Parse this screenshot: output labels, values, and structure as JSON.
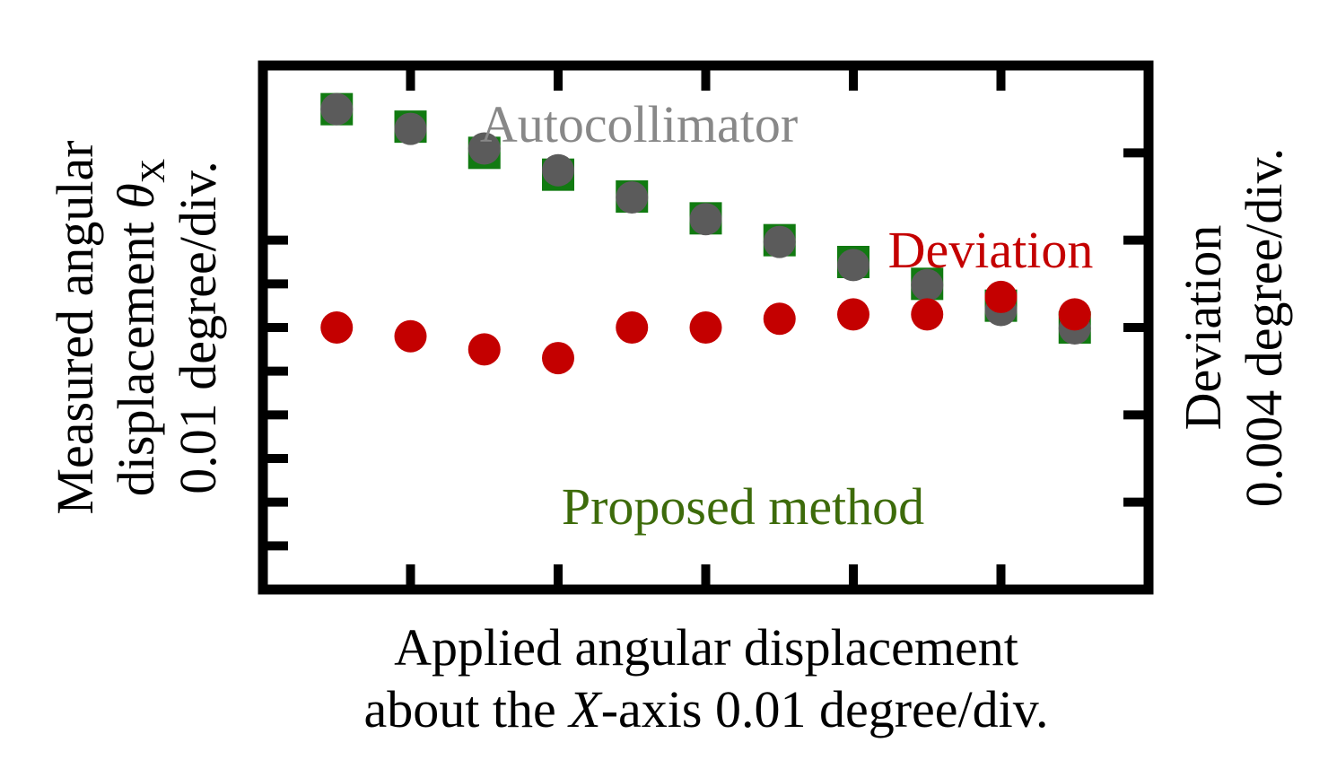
{
  "chart_data": {
    "type": "scatter",
    "xlabel_line1": "Applied angular displacement",
    "xlabel_line2_pre": "about the ",
    "xlabel_line2_var": "X",
    "xlabel_line2_post": "-axis 0.01 degree/div.",
    "ylabel_line1": "Measured angular",
    "ylabel_line2_pre": "displacement ",
    "ylabel_line2_var": "θ",
    "ylabel_line2_sub": "X",
    "ylabel_line3": "0.01 degree/div.",
    "y2label_line1": "Deviation",
    "y2label_line2": "0.004 degree/div.",
    "grid": false,
    "x": [
      -5,
      -4,
      -3,
      -2,
      -1,
      0,
      1,
      2,
      3,
      4,
      5
    ],
    "xlim": [
      -6,
      6
    ],
    "ylim": [
      -6,
      6
    ],
    "y2lim": [
      -6,
      6
    ],
    "x_ticks": [
      -4,
      -2,
      0,
      2,
      4
    ],
    "y_ticks": [
      -5,
      -4,
      -3,
      -2,
      -1,
      0,
      1,
      2
    ],
    "y2_ticks": [
      -4,
      -2,
      0,
      2,
      4
    ],
    "series": [
      {
        "name": "Proposed method",
        "axis": "left",
        "marker": "square",
        "color": "#117a11",
        "label_color": "#3d6b0a",
        "values": [
          5.0,
          4.6,
          4.0,
          3.5,
          3.0,
          2.5,
          2.0,
          1.5,
          1.0,
          0.5,
          0.0
        ]
      },
      {
        "name": "Autocollimator",
        "axis": "left",
        "marker": "circle",
        "color": "#5b5b5b",
        "label_color": "#888888",
        "values": [
          5.0,
          4.55,
          4.1,
          3.6,
          2.98,
          2.48,
          1.96,
          1.43,
          0.97,
          0.4,
          -0.02
        ]
      },
      {
        "name": "Deviation",
        "axis": "right",
        "marker": "circle",
        "color": "#c40000",
        "label_color": "#c40000",
        "values": [
          0.0,
          -0.2,
          -0.5,
          -0.7,
          0.0,
          0.0,
          0.2,
          0.3,
          0.3,
          0.7,
          0.3
        ]
      }
    ]
  }
}
